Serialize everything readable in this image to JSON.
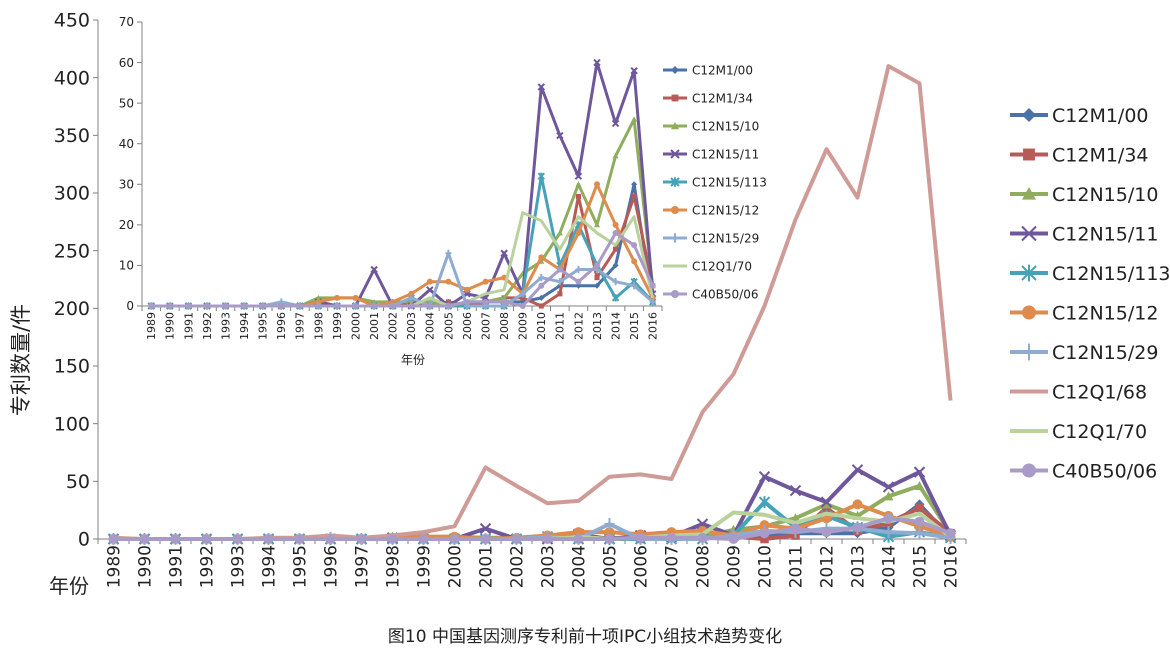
{
  "caption": "图10 中国基因测序专利前十项IPC小组技术趋势变化",
  "chart_data": [
    {
      "type": "line",
      "title": "",
      "xlabel": "年份",
      "ylabel": "专利数量/件",
      "ylim": [
        0,
        450
      ],
      "yticks": [
        0,
        50,
        100,
        150,
        200,
        250,
        300,
        350,
        400,
        450
      ],
      "grid": false,
      "legend_position": "right",
      "x": [
        "1989",
        "1990",
        "1991",
        "1992",
        "1993",
        "1994",
        "1995",
        "1996",
        "1997",
        "1998",
        "1999",
        "2000",
        "2001",
        "2002",
        "2003",
        "2004",
        "2005",
        "2006",
        "2007",
        "2008",
        "2009",
        "2010",
        "2011",
        "2012",
        "2013",
        "2014",
        "2015",
        "2016"
      ],
      "series": [
        {
          "name": "C12M1/00",
          "color": "#4a72a8",
          "marker": "diamond",
          "values": [
            0,
            0,
            0,
            0,
            0,
            0,
            0,
            0,
            0,
            0,
            0,
            0,
            0,
            0,
            0,
            0,
            1,
            0,
            1,
            1,
            1,
            2,
            5,
            5,
            5,
            10,
            30,
            1
          ]
        },
        {
          "name": "C12M1/34",
          "color": "#b85a57",
          "marker": "square",
          "values": [
            0,
            0,
            0,
            0,
            0,
            0,
            0,
            0,
            0,
            1,
            0,
            0,
            0,
            0,
            1,
            0,
            1,
            0,
            1,
            2,
            2,
            0,
            3,
            27,
            7,
            14,
            27,
            5
          ]
        },
        {
          "name": "C12N15/10",
          "color": "#8fad5d",
          "marker": "triangle",
          "values": [
            0,
            0,
            0,
            0,
            0,
            0,
            0,
            0,
            0,
            2,
            2,
            2,
            1,
            1,
            1,
            1,
            0,
            1,
            1,
            2,
            8,
            11,
            18,
            30,
            20,
            37,
            46,
            5
          ]
        },
        {
          "name": "C12N15/11",
          "color": "#6e579a",
          "marker": "x",
          "values": [
            0,
            0,
            0,
            0,
            0,
            0,
            0,
            0,
            0,
            1,
            0,
            0,
            9,
            0,
            0,
            4,
            0,
            3,
            2,
            13,
            3,
            54,
            42,
            32,
            60,
            45,
            58,
            3
          ]
        },
        {
          "name": "C12N15/113",
          "color": "#46a2b7",
          "marker": "asterisk",
          "values": [
            0,
            0,
            0,
            0,
            0,
            0,
            0,
            0,
            0,
            0,
            0,
            0,
            0,
            0,
            2,
            0,
            0,
            0,
            0,
            0,
            3,
            32,
            10,
            20,
            10,
            2,
            6,
            1
          ]
        },
        {
          "name": "C12N15/12",
          "color": "#de8b4c",
          "marker": "circle",
          "values": [
            0,
            0,
            0,
            0,
            0,
            0,
            0,
            0,
            0,
            1,
            2,
            2,
            0,
            1,
            3,
            6,
            6,
            4,
            6,
            7,
            3,
            12,
            9,
            18,
            30,
            20,
            11,
            2
          ]
        },
        {
          "name": "C12N15/29",
          "color": "#8facd0",
          "marker": "plus",
          "values": [
            0,
            0,
            0,
            0,
            0,
            0,
            0,
            1,
            0,
            0,
            0,
            0,
            0,
            0,
            2,
            0,
            13,
            0,
            0,
            0,
            3,
            7,
            6,
            9,
            9,
            6,
            5,
            1
          ]
        },
        {
          "name": "C12Q1/68",
          "color": "#cf9b97",
          "marker": "none",
          "values": [
            1,
            0,
            0,
            0,
            0,
            1,
            1,
            3,
            1,
            3,
            6,
            11,
            62,
            46,
            31,
            33,
            54,
            56,
            52,
            110,
            143,
            202,
            277,
            338,
            296,
            410,
            395,
            120
          ]
        },
        {
          "name": "C12Q1/70",
          "color": "#b9d29c",
          "marker": "none",
          "values": [
            0,
            0,
            0,
            0,
            0,
            0,
            0,
            0,
            0,
            0,
            0,
            0,
            0,
            0,
            0,
            2,
            0,
            1,
            3,
            4,
            23,
            21,
            14,
            22,
            18,
            15,
            22,
            2
          ]
        },
        {
          "name": "C40B50/06",
          "color": "#a99bc7",
          "marker": "circle",
          "values": [
            0,
            0,
            0,
            0,
            0,
            0,
            0,
            0,
            0,
            0,
            0,
            0,
            0,
            0,
            0,
            0,
            0,
            1,
            1,
            1,
            0,
            5,
            9,
            6,
            10,
            18,
            15,
            5
          ]
        }
      ]
    },
    {
      "type": "line",
      "title": "",
      "xlabel": "年份",
      "ylabel": "",
      "ylim": [
        0,
        70
      ],
      "yticks": [
        0,
        10,
        20,
        30,
        40,
        50,
        60,
        70
      ],
      "grid": false,
      "legend_position": "right",
      "x": [
        "1989",
        "1990",
        "1991",
        "1992",
        "1993",
        "1994",
        "1995",
        "1996",
        "1997",
        "1998",
        "1999",
        "2000",
        "2001",
        "2002",
        "2003",
        "2004",
        "2005",
        "2006",
        "2007",
        "2008",
        "2009",
        "2010",
        "2011",
        "2012",
        "2013",
        "2014",
        "2015",
        "2016"
      ],
      "series": [
        {
          "name": "C12M1/00",
          "color": "#4a72a8",
          "marker": "diamond",
          "values": [
            0,
            0,
            0,
            0,
            0,
            0,
            0,
            0,
            0,
            0,
            0,
            0,
            0,
            0,
            0,
            0,
            1,
            0,
            1,
            1,
            1,
            2,
            5,
            5,
            5,
            10,
            30,
            1
          ]
        },
        {
          "name": "C12M1/34",
          "color": "#b85a57",
          "marker": "square",
          "values": [
            0,
            0,
            0,
            0,
            0,
            0,
            0,
            0,
            0,
            1,
            0,
            0,
            0,
            0,
            1,
            0,
            1,
            0,
            1,
            2,
            2,
            0,
            3,
            27,
            7,
            14,
            27,
            5
          ]
        },
        {
          "name": "C12N15/10",
          "color": "#8fad5d",
          "marker": "triangle",
          "values": [
            0,
            0,
            0,
            0,
            0,
            0,
            0,
            0,
            0,
            2,
            2,
            2,
            1,
            1,
            1,
            1,
            0,
            1,
            1,
            2,
            8,
            11,
            18,
            30,
            20,
            37,
            46,
            5
          ]
        },
        {
          "name": "C12N15/11",
          "color": "#6e579a",
          "marker": "x",
          "values": [
            0,
            0,
            0,
            0,
            0,
            0,
            0,
            0,
            0,
            1,
            0,
            0,
            9,
            0,
            0,
            4,
            0,
            3,
            2,
            13,
            3,
            54,
            42,
            32,
            60,
            45,
            58,
            3
          ]
        },
        {
          "name": "C12N15/113",
          "color": "#46a2b7",
          "marker": "asterisk",
          "values": [
            0,
            0,
            0,
            0,
            0,
            0,
            0,
            0,
            0,
            0,
            0,
            0,
            0,
            0,
            2,
            0,
            0,
            0,
            0,
            0,
            3,
            32,
            10,
            20,
            10,
            2,
            6,
            1
          ]
        },
        {
          "name": "C12N15/12",
          "color": "#de8b4c",
          "marker": "circle",
          "values": [
            0,
            0,
            0,
            0,
            0,
            0,
            0,
            0,
            0,
            1,
            2,
            2,
            0,
            1,
            3,
            6,
            6,
            4,
            6,
            7,
            3,
            12,
            9,
            18,
            30,
            20,
            11,
            2
          ]
        },
        {
          "name": "C12N15/29",
          "color": "#8facd0",
          "marker": "plus",
          "values": [
            0,
            0,
            0,
            0,
            0,
            0,
            0,
            1,
            0,
            0,
            0,
            0,
            0,
            0,
            2,
            0,
            13,
            0,
            0,
            0,
            3,
            7,
            6,
            9,
            9,
            6,
            5,
            1
          ]
        },
        {
          "name": "C12Q1/70",
          "color": "#b9d29c",
          "marker": "none",
          "values": [
            0,
            0,
            0,
            0,
            0,
            0,
            0,
            0,
            0,
            0,
            0,
            0,
            0,
            0,
            0,
            2,
            0,
            1,
            3,
            4,
            23,
            21,
            14,
            22,
            18,
            15,
            22,
            2
          ]
        },
        {
          "name": "C40B50/06",
          "color": "#a99bc7",
          "marker": "circle",
          "values": [
            0,
            0,
            0,
            0,
            0,
            0,
            0,
            0,
            0,
            0,
            0,
            0,
            0,
            0,
            0,
            0,
            0,
            1,
            1,
            1,
            0,
            5,
            9,
            6,
            10,
            18,
            15,
            5
          ]
        }
      ]
    }
  ]
}
